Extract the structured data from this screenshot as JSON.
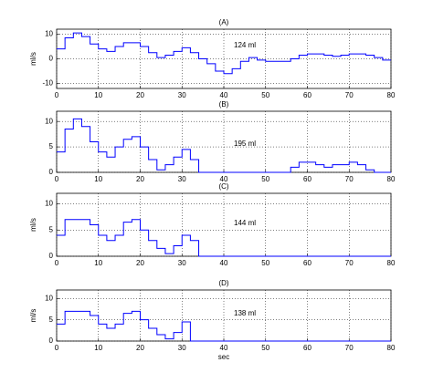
{
  "chart_data": [
    {
      "type": "step",
      "title": "(A)",
      "annotation": "124 ml",
      "ylabel": "ml/s",
      "color": "#0000ff",
      "grid": true,
      "x": [
        0,
        2,
        4,
        6,
        8,
        10,
        12,
        14,
        16,
        18,
        20,
        22,
        24,
        26,
        28,
        30,
        32,
        34,
        36,
        38,
        40,
        42,
        44,
        46,
        48,
        50,
        52,
        54,
        56,
        58,
        60,
        62,
        64,
        66,
        68,
        70,
        72,
        74,
        76,
        78
      ],
      "values": [
        4,
        8.5,
        10.5,
        9,
        6,
        4,
        3,
        5,
        6.5,
        6.5,
        5,
        2.5,
        0.5,
        1.5,
        3,
        4.5,
        2.5,
        0,
        -2,
        -5,
        -6,
        -4,
        -1,
        0.5,
        -0.5,
        -1,
        -1,
        -1,
        0,
        1.5,
        2,
        2,
        1.5,
        1,
        1.5,
        2,
        2,
        1.5,
        0.5,
        -0.5
      ],
      "xlim": [
        0,
        80
      ],
      "xticks": [
        0,
        10,
        20,
        30,
        40,
        50,
        60,
        70,
        80
      ],
      "ylim": [
        -12,
        12
      ],
      "yticks": [
        -10,
        0,
        10
      ]
    },
    {
      "type": "step",
      "title": "(B)",
      "annotation": "195 ml",
      "color": "#0000ff",
      "grid": true,
      "x": [
        0,
        2,
        4,
        6,
        8,
        10,
        12,
        14,
        16,
        18,
        20,
        22,
        24,
        26,
        28,
        30,
        32,
        34,
        36,
        38,
        40,
        42,
        44,
        46,
        48,
        50,
        52,
        54,
        56,
        58,
        60,
        62,
        64,
        66,
        68,
        70,
        72,
        74,
        76,
        78
      ],
      "values": [
        4,
        8.5,
        10.5,
        9,
        6,
        4,
        3,
        5,
        6.5,
        7,
        5,
        2.5,
        0.5,
        1.5,
        3,
        4.5,
        2.5,
        0,
        0,
        0,
        0,
        0,
        0,
        0,
        0,
        0,
        0,
        0,
        1,
        2,
        2,
        1.5,
        1,
        1.5,
        1.5,
        2,
        1.5,
        0.5,
        0,
        0
      ],
      "xlim": [
        0,
        80
      ],
      "xticks": [
        0,
        10,
        20,
        30,
        40,
        50,
        60,
        70,
        80
      ],
      "ylim": [
        0,
        12
      ],
      "yticks": [
        0,
        5,
        10
      ]
    },
    {
      "type": "step",
      "title": "(C)",
      "annotation": "144 ml",
      "ylabel": "ml/s",
      "color": "#0000ff",
      "grid": true,
      "x": [
        0,
        2,
        4,
        6,
        8,
        10,
        12,
        14,
        16,
        18,
        20,
        22,
        24,
        26,
        28,
        30,
        32,
        34,
        36,
        38,
        40,
        42,
        44,
        46,
        48,
        50,
        52,
        54,
        56,
        58,
        60,
        62,
        64,
        66,
        68,
        70,
        72,
        74,
        76,
        78
      ],
      "values": [
        4,
        7,
        7,
        7,
        6,
        4,
        3,
        4,
        6.5,
        7,
        5,
        3,
        1.5,
        0.5,
        2,
        4,
        3,
        0,
        0,
        0,
        0,
        0,
        0,
        0,
        0,
        0,
        0,
        0,
        0,
        0,
        0,
        0,
        0,
        0,
        0,
        0,
        0,
        0,
        0,
        0
      ],
      "xlim": [
        0,
        80
      ],
      "xticks": [
        0,
        10,
        20,
        30,
        40,
        50,
        60,
        70,
        80
      ],
      "ylim": [
        0,
        12
      ],
      "yticks": [
        0,
        5,
        10
      ]
    },
    {
      "type": "step",
      "title": "(D)",
      "annotation": "138 ml",
      "ylabel": "ml/s",
      "xlabel": "sec",
      "color": "#0000ff",
      "grid": true,
      "x": [
        0,
        2,
        4,
        6,
        8,
        10,
        12,
        14,
        16,
        18,
        20,
        22,
        24,
        26,
        28,
        30,
        32,
        34,
        36,
        38,
        40,
        42,
        44,
        46,
        48,
        50,
        52,
        54,
        56,
        58,
        60,
        62,
        64,
        66,
        68,
        70,
        72,
        74,
        76,
        78
      ],
      "values": [
        4,
        7,
        7,
        7,
        6,
        4,
        3,
        4,
        6.5,
        7,
        5,
        3,
        1.5,
        0.5,
        2,
        4.5,
        0,
        0,
        0,
        0,
        0,
        0,
        0,
        0,
        0,
        0,
        0,
        0,
        0,
        0,
        0,
        0,
        0,
        0,
        0,
        0,
        0,
        0,
        0,
        0
      ],
      "xlim": [
        0,
        80
      ],
      "xticks": [
        0,
        10,
        20,
        30,
        40,
        50,
        60,
        70,
        80
      ],
      "ylim": [
        0,
        12
      ],
      "yticks": [
        0,
        5,
        10
      ]
    }
  ]
}
